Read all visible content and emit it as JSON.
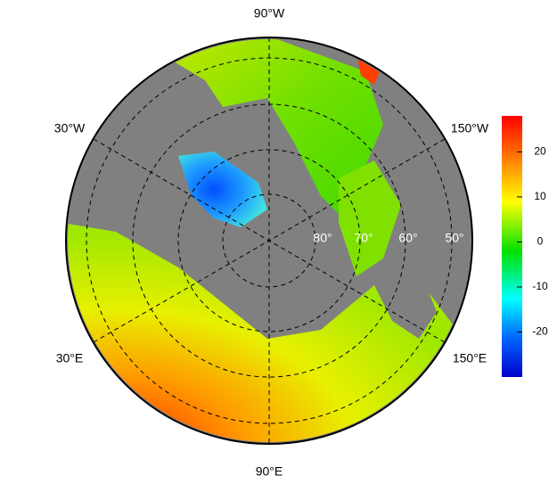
{
  "map": {
    "longitude_labels": [
      "90°W",
      "30°W",
      "150°W",
      "30°E",
      "150°E",
      "90°E"
    ],
    "latitude_labels": [
      "80°",
      "70°",
      "60°",
      "50°"
    ],
    "colorbar": {
      "lim": [
        -30,
        28
      ],
      "ticks": [
        -20,
        -10,
        0,
        10,
        20
      ]
    }
  }
}
